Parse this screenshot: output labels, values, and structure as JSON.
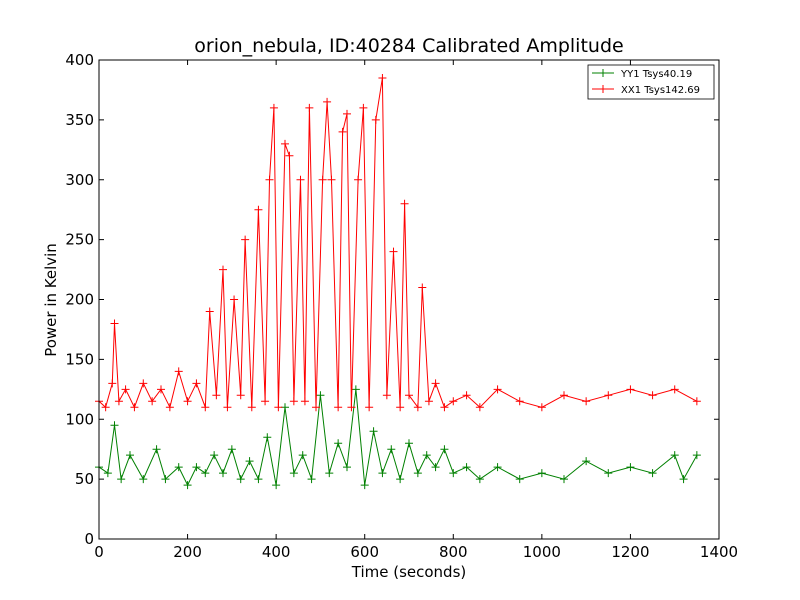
{
  "chart_data": {
    "type": "line",
    "title": "orion_nebula, ID:40284 Calibrated Amplitude",
    "xlabel": "Time (seconds)",
    "ylabel": "Power in Kelvin",
    "xlim": [
      0,
      1400
    ],
    "ylim": [
      0,
      400
    ],
    "xticks": [
      "0",
      "200",
      "400",
      "600",
      "800",
      "1000",
      "1200",
      "1400"
    ],
    "yticks": [
      "0",
      "50",
      "100",
      "150",
      "200",
      "250",
      "300",
      "350",
      "400"
    ],
    "grid": false,
    "legend_position": "top-right",
    "marker": "plus",
    "series": [
      {
        "name": "YY1 Tsys40.19",
        "color": "#008000",
        "x": [
          0,
          20,
          35,
          50,
          70,
          100,
          130,
          150,
          180,
          200,
          220,
          240,
          260,
          280,
          300,
          320,
          340,
          360,
          380,
          400,
          420,
          440,
          460,
          480,
          500,
          520,
          540,
          560,
          580,
          600,
          620,
          640,
          660,
          680,
          700,
          720,
          740,
          760,
          780,
          800,
          830,
          860,
          900,
          950,
          1000,
          1050,
          1100,
          1150,
          1200,
          1250,
          1300,
          1320,
          1350
        ],
        "values": [
          60,
          55,
          95,
          50,
          70,
          50,
          75,
          50,
          60,
          45,
          60,
          55,
          70,
          55,
          75,
          50,
          65,
          50,
          85,
          45,
          110,
          55,
          70,
          50,
          120,
          55,
          80,
          60,
          125,
          45,
          90,
          55,
          75,
          50,
          80,
          55,
          70,
          60,
          75,
          55,
          60,
          50,
          60,
          50,
          55,
          50,
          65,
          55,
          60,
          55,
          70,
          50,
          70
        ]
      },
      {
        "name": "XX1 Tsys142.69",
        "color": "#ff0000",
        "x": [
          0,
          15,
          30,
          35,
          45,
          60,
          80,
          100,
          120,
          140,
          160,
          180,
          200,
          220,
          240,
          250,
          265,
          280,
          290,
          305,
          320,
          330,
          345,
          360,
          375,
          385,
          395,
          405,
          420,
          430,
          440,
          455,
          465,
          475,
          490,
          505,
          515,
          525,
          540,
          550,
          560,
          570,
          585,
          597,
          610,
          625,
          640,
          650,
          665,
          680,
          690,
          700,
          720,
          730,
          745,
          760,
          780,
          800,
          830,
          860,
          900,
          950,
          1000,
          1050,
          1100,
          1150,
          1200,
          1250,
          1300,
          1350
        ],
        "values": [
          115,
          110,
          130,
          180,
          115,
          125,
          110,
          130,
          115,
          125,
          110,
          140,
          115,
          130,
          110,
          190,
          120,
          225,
          110,
          200,
          120,
          250,
          110,
          275,
          115,
          300,
          360,
          110,
          330,
          320,
          115,
          300,
          115,
          360,
          110,
          300,
          365,
          300,
          110,
          340,
          355,
          110,
          300,
          360,
          110,
          350,
          385,
          120,
          240,
          110,
          280,
          120,
          110,
          210,
          115,
          130,
          110,
          115,
          120,
          110,
          125,
          115,
          110,
          120,
          115,
          120,
          125,
          120,
          125,
          115
        ]
      }
    ]
  }
}
